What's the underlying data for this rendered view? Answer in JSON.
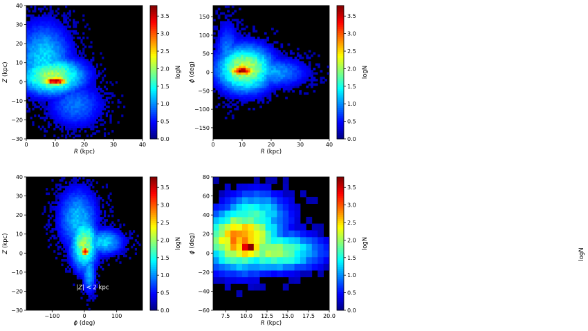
{
  "chart_data": [
    {
      "type": "heatmap",
      "panel": "top-left",
      "xlabel_parts": [
        "",
        "R",
        " (kpc)"
      ],
      "ylabel_parts": [
        "",
        "Z",
        " (kpc)"
      ],
      "xlim": [
        0,
        40
      ],
      "ylim": [
        -30,
        40
      ],
      "xticks": [
        0,
        10,
        20,
        30,
        40
      ],
      "yticks": [
        -30,
        -20,
        -10,
        0,
        10,
        20,
        30,
        40
      ],
      "xticklabels": [
        "0",
        "10",
        "20",
        "30",
        "40"
      ],
      "yticklabels": [
        "−30",
        "−20",
        "−10",
        "0",
        "10",
        "20",
        "30",
        "40"
      ],
      "bins": [
        60,
        60
      ],
      "clusters": [
        {
          "cx": 10,
          "cy": 0.5,
          "sx": 3.5,
          "sy": 1.8,
          "peak": 3.7
        },
        {
          "cx": 9,
          "cy": 3,
          "sx": 8,
          "sy": 7,
          "peak": 2.1
        },
        {
          "cx": 6,
          "cy": 12,
          "sx": 7,
          "sy": 14,
          "peak": 1.3
        },
        {
          "cx": 17,
          "cy": -12,
          "sx": 7,
          "sy": 9,
          "peak": 0.9
        }
      ],
      "colorbar": {
        "label": "logN",
        "range": [
          0,
          3.8
        ],
        "ticks": [
          0.0,
          0.5,
          1.0,
          1.5,
          2.0,
          2.5,
          3.0,
          3.5
        ],
        "ticklabels": [
          "0.0",
          "0.5",
          "1.0",
          "1.5",
          "2.0",
          "2.5",
          "3.0",
          "3.5"
        ]
      }
    },
    {
      "type": "heatmap",
      "panel": "top-right",
      "xlabel_parts": [
        "",
        "R",
        " (kpc)"
      ],
      "ylabel_parts": [
        "",
        "ϕ",
        " (deg)"
      ],
      "xlim": [
        0,
        40
      ],
      "ylim": [
        -180,
        180
      ],
      "xticks": [
        0,
        10,
        20,
        30,
        40
      ],
      "yticks": [
        -150,
        -100,
        -50,
        0,
        50,
        100,
        150
      ],
      "xticklabels": [
        "0",
        "10",
        "20",
        "30",
        "40"
      ],
      "yticklabels": [
        "−150",
        "−100",
        "−50",
        "0",
        "50",
        "100",
        "150"
      ],
      "bins": [
        50,
        60
      ],
      "clusters": [
        {
          "cx": 10,
          "cy": 5,
          "sx": 3.5,
          "sy": 12,
          "peak": 3.6
        },
        {
          "cx": 11,
          "cy": 10,
          "sx": 7,
          "sy": 45,
          "peak": 2.2
        },
        {
          "cx": 20,
          "cy": 0,
          "sx": 9,
          "sy": 30,
          "peak": 1.1
        },
        {
          "cx": 5,
          "cy": 40,
          "sx": 3,
          "sy": 70,
          "peak": 1.0
        }
      ],
      "colorbar": {
        "label": "logN",
        "range": [
          0,
          3.8
        ],
        "ticks": [
          0.0,
          0.5,
          1.0,
          1.5,
          2.0,
          2.5,
          3.0,
          3.5
        ],
        "ticklabels": [
          "0.0",
          "0.5",
          "1.0",
          "1.5",
          "2.0",
          "2.5",
          "3.0",
          "3.5"
        ]
      }
    },
    {
      "type": "heatmap",
      "panel": "bottom-left",
      "xlabel_parts": [
        "",
        "ϕ",
        " (deg)"
      ],
      "ylabel_parts": [
        "",
        "Z",
        " (kpc)"
      ],
      "xlim": [
        -180,
        180
      ],
      "ylim": [
        -30,
        40
      ],
      "xticks": [
        -100,
        0,
        100
      ],
      "yticks": [
        -30,
        -20,
        -10,
        0,
        10,
        20,
        30,
        40
      ],
      "xticklabels": [
        "−100",
        "0",
        "100"
      ],
      "yticklabels": [
        "−30",
        "−20",
        "−10",
        "0",
        "10",
        "20",
        "30",
        "40"
      ],
      "bins": [
        60,
        60
      ],
      "clusters": [
        {
          "cx": 3,
          "cy": 1,
          "sx": 10,
          "sy": 1.8,
          "peak": 3.6
        },
        {
          "cx": 0,
          "cy": 5,
          "sx": 30,
          "sy": 10,
          "peak": 2.0
        },
        {
          "cx": -20,
          "cy": 18,
          "sx": 45,
          "sy": 12,
          "peak": 1.2
        },
        {
          "cx": 60,
          "cy": 6,
          "sx": 45,
          "sy": 5,
          "peak": 1.3
        },
        {
          "cx": 15,
          "cy": -10,
          "sx": 15,
          "sy": 8,
          "peak": 1.2
        }
      ],
      "annotation_parts": [
        "|",
        "Z",
        "| < 2 kpc"
      ],
      "colorbar": {
        "label": "logN",
        "range": [
          0,
          3.8
        ],
        "ticks": [
          0.0,
          0.5,
          1.0,
          1.5,
          2.0,
          2.5,
          3.0,
          3.5
        ],
        "ticklabels": [
          "0.0",
          "0.5",
          "1.0",
          "1.5",
          "2.0",
          "2.5",
          "3.0",
          "3.5"
        ]
      }
    },
    {
      "type": "heatmap",
      "panel": "bottom-right",
      "xlabel_parts": [
        "",
        "R",
        " (kpc)"
      ],
      "ylabel_parts": [
        "",
        "ϕ",
        " (deg)"
      ],
      "xlim": [
        6,
        20
      ],
      "ylim": [
        -60,
        80
      ],
      "xticks": [
        7.5,
        10.0,
        12.5,
        15.0,
        17.5,
        20.0
      ],
      "yticks": [
        -60,
        -40,
        -20,
        0,
        20,
        40,
        60,
        80
      ],
      "xticklabels": [
        "7.5",
        "10.0",
        "12.5",
        "15.0",
        "17.5",
        "20.0"
      ],
      "yticklabels": [
        "−60",
        "−40",
        "−20",
        "0",
        "20",
        "40",
        "60",
        "80"
      ],
      "bins": [
        20,
        20
      ],
      "clusters": [
        {
          "cx": 10.2,
          "cy": 5,
          "sx": 1.4,
          "sy": 7,
          "peak": 3.7
        },
        {
          "cx": 9.5,
          "cy": 15,
          "sx": 3.2,
          "sy": 22,
          "peak": 2.9
        },
        {
          "cx": 13,
          "cy": 2,
          "sx": 4.2,
          "sy": 14,
          "peak": 2.1
        },
        {
          "cx": 11,
          "cy": 40,
          "sx": 3.0,
          "sy": 18,
          "peak": 1.6
        }
      ],
      "colorbar": {
        "label": "logN",
        "range": [
          0,
          3.8
        ],
        "ticks": [
          0.0,
          0.5,
          1.0,
          1.5,
          2.0,
          2.5,
          3.0,
          3.5
        ],
        "ticklabels": [
          "0.0",
          "0.5",
          "1.0",
          "1.5",
          "2.0",
          "2.5",
          "3.0",
          "3.5"
        ]
      }
    }
  ],
  "stray_label": "logN",
  "colors": {
    "background": "#000000"
  }
}
